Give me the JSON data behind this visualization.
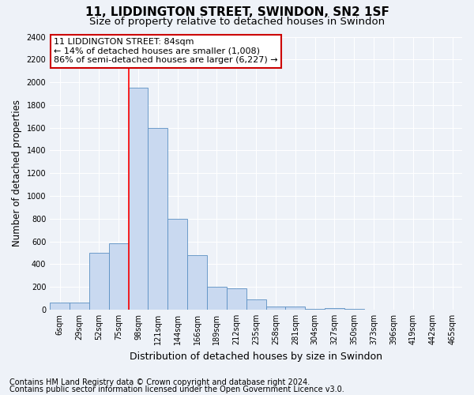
{
  "title": "11, LIDDINGTON STREET, SWINDON, SN2 1SF",
  "subtitle": "Size of property relative to detached houses in Swindon",
  "xlabel": "Distribution of detached houses by size in Swindon",
  "ylabel": "Number of detached properties",
  "categories": [
    "6sqm",
    "29sqm",
    "52sqm",
    "75sqm",
    "98sqm",
    "121sqm",
    "144sqm",
    "166sqm",
    "189sqm",
    "212sqm",
    "235sqm",
    "258sqm",
    "281sqm",
    "304sqm",
    "327sqm",
    "350sqm",
    "373sqm",
    "396sqm",
    "419sqm",
    "442sqm",
    "465sqm"
  ],
  "values": [
    60,
    60,
    500,
    580,
    1950,
    1600,
    800,
    480,
    200,
    190,
    90,
    30,
    25,
    5,
    10,
    5,
    2,
    2,
    1,
    1,
    1
  ],
  "bar_color": "#c9d9f0",
  "bar_edge_color": "#5a8fc3",
  "red_line_x": 3.5,
  "annotation_line1": "11 LIDDINGTON STREET: 84sqm",
  "annotation_line2": "← 14% of detached houses are smaller (1,008)",
  "annotation_line3": "86% of semi-detached houses are larger (6,227) →",
  "annotation_box_color": "#ffffff",
  "annotation_box_edge": "#cc0000",
  "ylim": [
    0,
    2400
  ],
  "yticks": [
    0,
    200,
    400,
    600,
    800,
    1000,
    1200,
    1400,
    1600,
    1800,
    2000,
    2200,
    2400
  ],
  "footer1": "Contains HM Land Registry data © Crown copyright and database right 2024.",
  "footer2": "Contains public sector information licensed under the Open Government Licence v3.0.",
  "bg_color": "#eef2f8",
  "plot_bg_color": "#eef2f8",
  "title_fontsize": 11,
  "subtitle_fontsize": 9.5,
  "ylabel_fontsize": 8.5,
  "xlabel_fontsize": 9,
  "tick_fontsize": 7,
  "ann_fontsize": 8,
  "footer_fontsize": 7,
  "grid_color": "#ffffff"
}
